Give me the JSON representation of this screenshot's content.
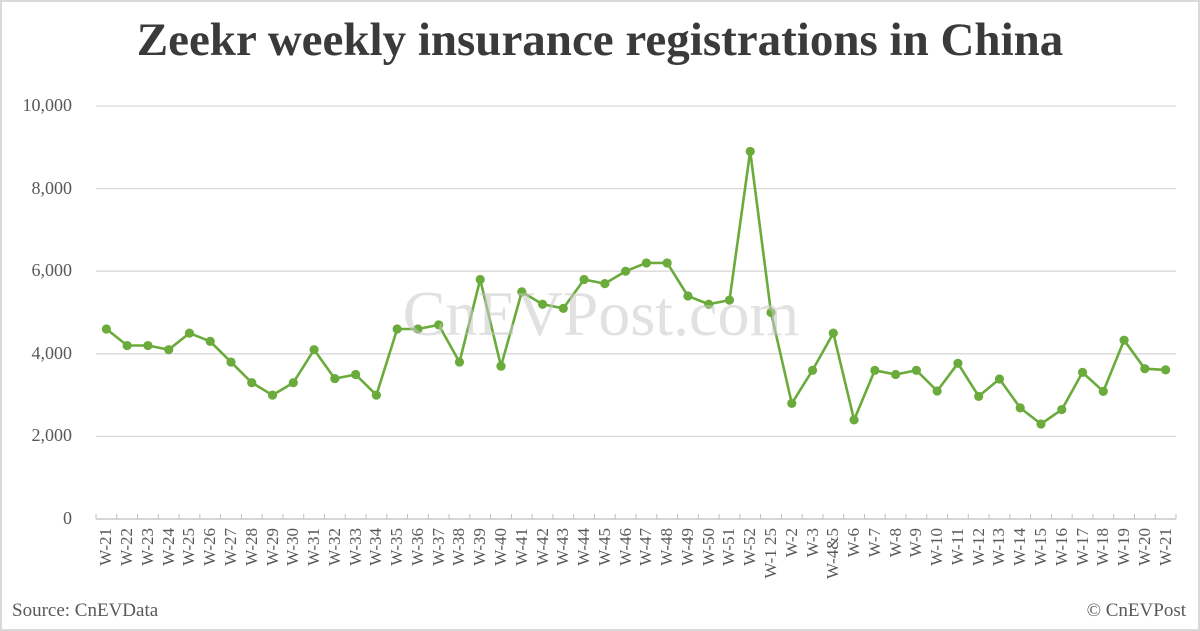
{
  "title": "Zeekr weekly insurance registrations in China",
  "watermark": "CnEVPost.com",
  "source": "Source: CnEVData",
  "copyright": "© CnEVPost",
  "colors": {
    "series": "#6aab3c",
    "grid": "#d9d9d9",
    "text": "#595959",
    "title": "#3a3a3a"
  },
  "y_ticks": [
    "10,000",
    "8,000",
    "6,000",
    "4,000",
    "2,000",
    "0"
  ],
  "chart_data": {
    "type": "line",
    "title": "Zeekr weekly insurance registrations in China",
    "xlabel": "",
    "ylabel": "",
    "ylim": [
      0,
      10000
    ],
    "yticks": [
      0,
      2000,
      4000,
      6000,
      8000,
      10000
    ],
    "grid": true,
    "legend": "none",
    "categories": [
      "W-21",
      "W-22",
      "W-23",
      "W-24",
      "W-25",
      "W-26",
      "W-27",
      "W-28",
      "W-29",
      "W-30",
      "W-31",
      "W-32",
      "W-33",
      "W-34",
      "W-35",
      "W-36",
      "W-37",
      "W-38",
      "W-39",
      "W-40",
      "W-41",
      "W-42",
      "W-43",
      "W-44",
      "W-45",
      "W-46",
      "W-47",
      "W-48",
      "W-49",
      "W-50",
      "W-51",
      "W-52",
      "W-1 25",
      "W-2",
      "W-3",
      "W-4&5",
      "W-6",
      "W-7",
      "W-8",
      "W-9",
      "W-10",
      "W-11",
      "W-12",
      "W-13",
      "W-14",
      "W-15",
      "W-16",
      "W-17",
      "W-18",
      "W-19",
      "W-20",
      "W-21"
    ],
    "series": [
      {
        "name": "Zeekr weekly insurance registrations",
        "values": [
          4600,
          4200,
          4200,
          4100,
          4500,
          4300,
          3800,
          3300,
          3000,
          3300,
          4100,
          3400,
          3500,
          3000,
          4600,
          4600,
          4700,
          3800,
          5800,
          3700,
          5500,
          5200,
          5100,
          5800,
          5700,
          6000,
          6200,
          6200,
          5400,
          5200,
          5300,
          8900,
          5000,
          2800,
          3600,
          4500,
          2400,
          3600,
          3500,
          3600,
          3100,
          3770,
          2970,
          3390,
          2690,
          2300,
          2650,
          3550,
          3090,
          4330,
          3640,
          3610
        ]
      }
    ],
    "annotations": [
      "Source: CnEVData",
      "© CnEVPost",
      "CnEVPost.com (watermark)"
    ]
  }
}
